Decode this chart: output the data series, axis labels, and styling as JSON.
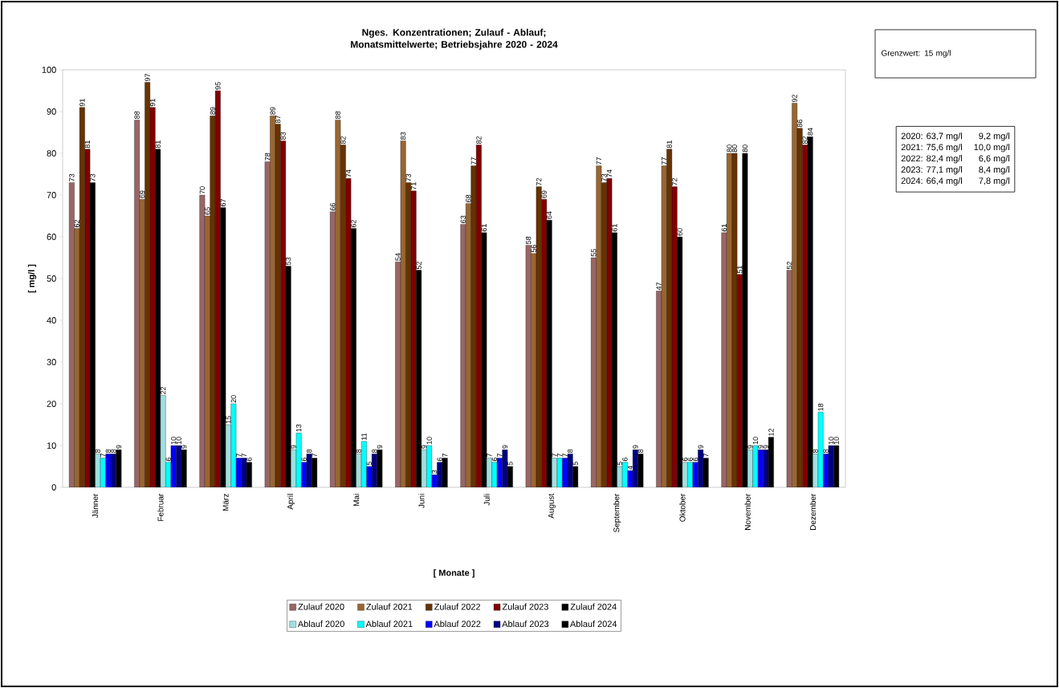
{
  "chart_data": {
    "type": "bar",
    "title": "Nges. Konzentrationen; Zulauf - Ablauf; Monatsmittelwerte; Betriebsjahre 2020 - 2024",
    "xlabel": "[ Monate ]",
    "ylabel": "[ mg/l ]",
    "categories": [
      "Jänner",
      "Februar",
      "März",
      "April",
      "Mai",
      "Juni",
      "Juli",
      "August",
      "September",
      "Oktober",
      "November",
      "Dezember"
    ],
    "series": [
      {
        "name": "Zulauf 2020",
        "color": "#996666",
        "values": [
          73,
          88,
          70,
          78,
          66,
          54,
          63,
          58,
          55,
          47,
          61,
          52
        ]
      },
      {
        "name": "Zulauf 2021",
        "color": "#996633",
        "values": [
          62,
          69,
          65,
          89,
          88,
          83,
          68,
          56,
          77,
          77,
          80,
          92
        ]
      },
      {
        "name": "Zulauf 2022",
        "color": "#663300",
        "values": [
          91,
          97,
          89,
          87,
          82,
          73,
          77,
          72,
          73,
          81,
          80,
          86
        ]
      },
      {
        "name": "Zulauf 2023",
        "color": "#800000",
        "values": [
          81,
          91,
          95,
          83,
          74,
          71,
          82,
          69,
          74,
          72,
          51,
          82
        ]
      },
      {
        "name": "Zulauf 2024",
        "color": "#000000",
        "values": [
          73,
          81,
          67,
          53,
          62,
          52,
          61,
          64,
          61,
          60,
          80,
          84
        ]
      },
      {
        "name": "Ablauf 2020",
        "color": "#a0e0e0",
        "values": [
          8,
          22,
          15,
          9,
          8,
          9,
          7,
          7,
          5,
          6,
          9,
          8
        ]
      },
      {
        "name": "Ablauf 2021",
        "color": "#00ffff",
        "values": [
          7,
          6,
          20,
          13,
          11,
          10,
          6,
          7,
          6,
          6,
          10,
          18
        ]
      },
      {
        "name": "Ablauf 2022",
        "color": "#0000ff",
        "values": [
          8,
          10,
          7,
          6,
          5,
          3,
          7,
          7,
          4,
          6,
          9,
          8
        ]
      },
      {
        "name": "Ablauf 2023",
        "color": "#000080",
        "values": [
          8,
          10,
          7,
          8,
          8,
          6,
          9,
          8,
          9,
          9,
          9,
          10
        ]
      },
      {
        "name": "Ablauf 2024",
        "color": "#000000",
        "values": [
          9,
          9,
          6,
          7,
          9,
          7,
          5,
          5,
          8,
          7,
          12,
          10
        ]
      }
    ],
    "ylim": [
      0,
      100
    ],
    "yticks": [
      0,
      10,
      20,
      30,
      40,
      50,
      60,
      70,
      80,
      90,
      100
    ],
    "data_labels": true,
    "legend": "bottom",
    "annotations": [
      "Grenzwert:  15 mg/l",
      "2020: 63,7 mg/l",
      "9,2 mg/l",
      "2021: 75,6 mg/l",
      "10,0 mg/l",
      "2022: 82,4 mg/l",
      "6,6 mg/l",
      "2023: 77,1 mg/l",
      "8,4 mg/l",
      "2024: 66,4 mg/l",
      "7,8 mg/l"
    ]
  }
}
